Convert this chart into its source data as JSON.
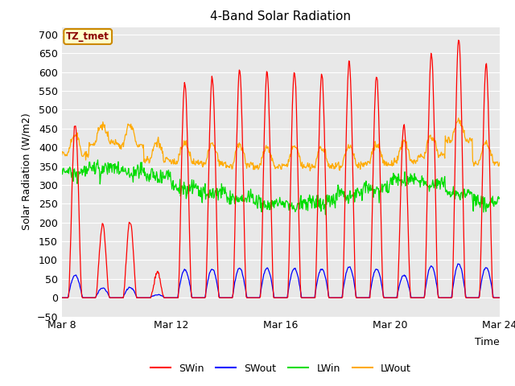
{
  "title": "4-Band Solar Radiation",
  "xlabel": "Time",
  "ylabel": "Solar Radiation (W/m2)",
  "ylim": [
    -50,
    720
  ],
  "xtick_labels": [
    "Mar 8",
    "Mar 12",
    "Mar 16",
    "Mar 20",
    "Mar 24"
  ],
  "legend_labels": [
    "SWin",
    "SWout",
    "LWin",
    "LWout"
  ],
  "colors": {
    "SWin": "#ff0000",
    "SWout": "#0000ff",
    "LWin": "#00dd00",
    "LWout": "#ffaa00"
  },
  "station_label": "TZ_tmet",
  "plot_bg_color": "#e8e8e8",
  "grid_color": "#ffffff",
  "title_fontsize": 11,
  "label_fontsize": 9,
  "tick_fontsize": 9
}
